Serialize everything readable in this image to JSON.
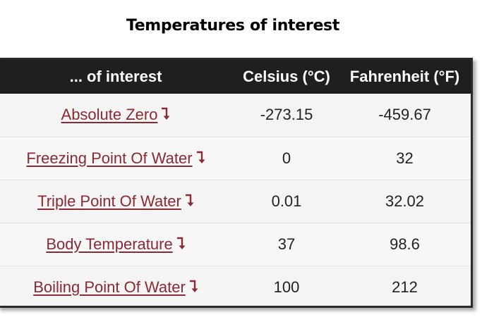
{
  "title": "Temperatures of interest",
  "table": {
    "headers": [
      "... of interest",
      "Celsius (°C)",
      "Fahrenheit (°F)"
    ],
    "rows": [
      {
        "name": "Absolute Zero",
        "celsius": "-273.15",
        "fahrenheit": "-459.67"
      },
      {
        "name": "Freezing Point Of Water",
        "celsius": "0",
        "fahrenheit": "32"
      },
      {
        "name": "Triple Point Of Water",
        "celsius": "0.01",
        "fahrenheit": "32.02"
      },
      {
        "name": "Body Temperature",
        "celsius": "37",
        "fahrenheit": "98.6"
      },
      {
        "name": "Boiling Point Of Water",
        "celsius": "100",
        "fahrenheit": "212"
      }
    ]
  },
  "colors": {
    "header_bg": "#1f1f1f",
    "link": "#8a2a33"
  },
  "icons": {
    "row_link": "arrow-down-right-icon"
  }
}
